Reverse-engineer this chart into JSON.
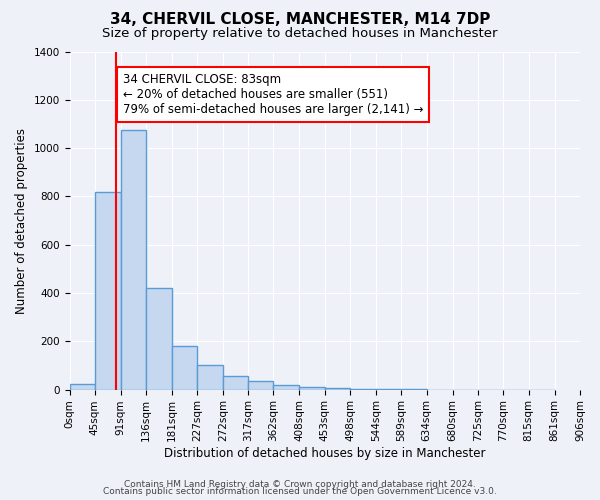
{
  "title": "34, CHERVIL CLOSE, MANCHESTER, M14 7DP",
  "subtitle": "Size of property relative to detached houses in Manchester",
  "xlabel": "Distribution of detached houses by size in Manchester",
  "ylabel": "Number of detached properties",
  "bar_values": [
    25,
    820,
    1075,
    420,
    180,
    100,
    58,
    35,
    20,
    12,
    5,
    3,
    2,
    1,
    0,
    0,
    0,
    0,
    0
  ],
  "bar_left_edges": [
    0,
    45,
    91,
    136,
    181,
    227,
    272,
    317,
    362,
    408,
    453,
    498,
    544,
    589,
    634,
    680,
    725,
    770,
    815
  ],
  "bar_widths": [
    45,
    46,
    45,
    45,
    46,
    45,
    45,
    45,
    46,
    45,
    45,
    46,
    45,
    45,
    46,
    45,
    45,
    45,
    46
  ],
  "xtick_positions": [
    0,
    45,
    91,
    136,
    181,
    227,
    272,
    317,
    362,
    408,
    453,
    498,
    544,
    589,
    634,
    680,
    725,
    770,
    815,
    861,
    906
  ],
  "xtick_labels": [
    "0sqm",
    "45sqm",
    "91sqm",
    "136sqm",
    "181sqm",
    "227sqm",
    "272sqm",
    "317sqm",
    "362sqm",
    "408sqm",
    "453sqm",
    "498sqm",
    "544sqm",
    "589sqm",
    "634sqm",
    "680sqm",
    "725sqm",
    "770sqm",
    "815sqm",
    "861sqm",
    "906sqm"
  ],
  "ylim": [
    0,
    1400
  ],
  "yticks": [
    0,
    200,
    400,
    600,
    800,
    1000,
    1200,
    1400
  ],
  "bar_color": "#c5d8f0",
  "bar_edgecolor": "#5b9bd5",
  "bar_linewidth": 1.0,
  "redline_x": 83,
  "annotation_title": "34 CHERVIL CLOSE: 83sqm",
  "annotation_line1": "← 20% of detached houses are smaller (551)",
  "annotation_line2": "79% of semi-detached houses are larger (2,141) →",
  "footer_line1": "Contains HM Land Registry data © Crown copyright and database right 2024.",
  "footer_line2": "Contains public sector information licensed under the Open Government Licence v3.0.",
  "bg_color": "#eef2f8",
  "plot_bg_color": "#eef2f8",
  "title_fontsize": 11,
  "subtitle_fontsize": 9.5,
  "axis_label_fontsize": 8.5,
  "tick_fontsize": 7.5,
  "footer_fontsize": 6.5,
  "annotation_fontsize": 8.5
}
